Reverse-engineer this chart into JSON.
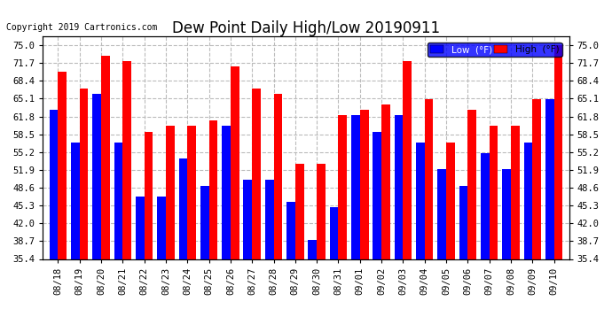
{
  "title": "Dew Point Daily High/Low 20190911",
  "copyright": "Copyright 2019 Cartronics.com",
  "dates": [
    "08/18",
    "08/19",
    "08/20",
    "08/21",
    "08/22",
    "08/23",
    "08/24",
    "08/25",
    "08/26",
    "08/27",
    "08/28",
    "08/29",
    "08/30",
    "08/31",
    "09/01",
    "09/02",
    "09/03",
    "09/04",
    "09/05",
    "09/06",
    "09/07",
    "09/08",
    "09/09",
    "09/10"
  ],
  "low_values": [
    63,
    57,
    66,
    57,
    47,
    47,
    54,
    49,
    60,
    50,
    50,
    46,
    39,
    45,
    62,
    59,
    62,
    57,
    52,
    49,
    55,
    52,
    57,
    65
  ],
  "high_values": [
    70,
    67,
    73,
    72,
    59,
    60,
    60,
    61,
    71,
    67,
    66,
    53,
    53,
    62,
    63,
    64,
    72,
    65,
    57,
    63,
    60,
    60,
    65,
    75
  ],
  "low_color": "#0000ff",
  "high_color": "#ff0000",
  "background_color": "#ffffff",
  "grid_color": "#bbbbbb",
  "ylim_min": 35.4,
  "ylim_max": 76.6,
  "yticks": [
    35.4,
    38.7,
    42.0,
    45.3,
    48.6,
    51.9,
    55.2,
    58.5,
    61.8,
    65.1,
    68.4,
    71.7,
    75.0
  ],
  "ytick_labels": [
    "35.4",
    "38.7",
    "42.0",
    "45.3",
    "48.6",
    "51.9",
    "55.2",
    "58.5",
    "61.8",
    "65.1",
    "68.4",
    "71.7",
    "75.0"
  ],
  "title_fontsize": 12,
  "tick_fontsize": 7.5,
  "legend_fontsize": 7.5,
  "copyright_fontsize": 7
}
